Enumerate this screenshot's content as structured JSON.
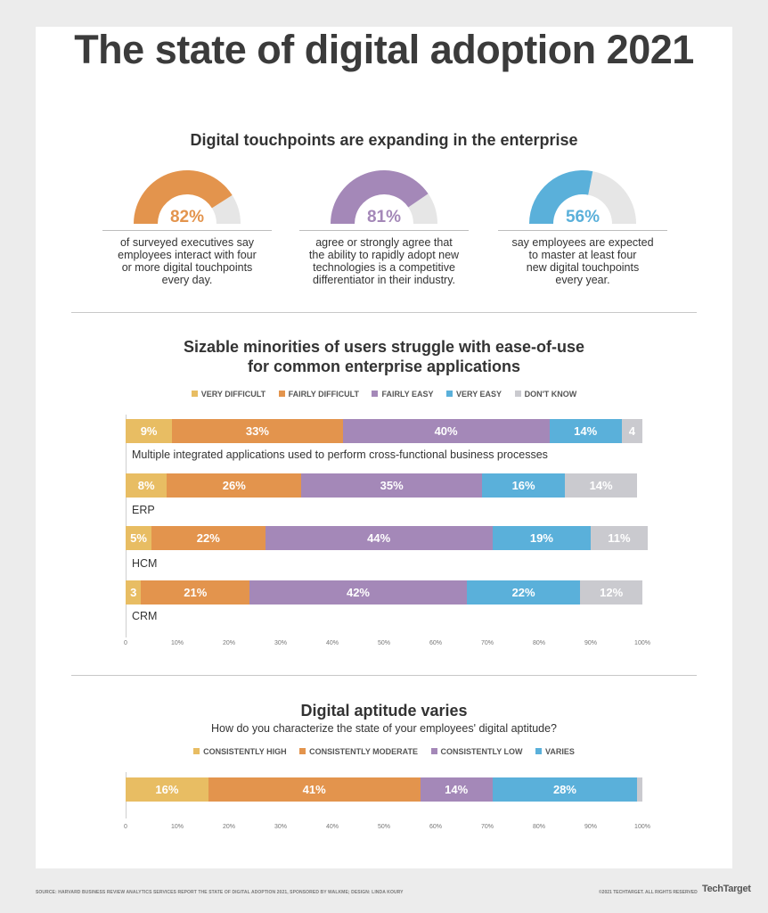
{
  "title": "The state of digital adoption 2021",
  "section1": {
    "heading": "Digital touchpoints are expanding in the enterprise",
    "gauges": [
      {
        "value": 82,
        "label": "82%",
        "color": "#e3944d",
        "text": [
          "of surveyed executives say",
          "employees interact with four",
          "or more digital touchpoints",
          "every day."
        ]
      },
      {
        "value": 81,
        "label": "81%",
        "color": "#a488b8",
        "text": [
          "agree or strongly agree that",
          "the ability to rapidly adopt new",
          "technologies is a competitive",
          "differentiator in their industry."
        ]
      },
      {
        "value": 56,
        "label": "56%",
        "color": "#5ab0da",
        "text": [
          "say employees are expected",
          "to master at least four",
          "new digital touchpoints",
          "every year."
        ]
      }
    ]
  },
  "section2": {
    "heading_line1": "Sizable minorities of users struggle with ease-of-use",
    "heading_line2": "for common enterprise applications",
    "legend": [
      {
        "label": "VERY DIFFICULT",
        "color": "#e8bd63"
      },
      {
        "label": "FAIRLY DIFFICULT",
        "color": "#e3944d"
      },
      {
        "label": "FAIRLY EASY",
        "color": "#a488b8"
      },
      {
        "label": "VERY EASY",
        "color": "#5ab0da"
      },
      {
        "label": "DON'T KNOW",
        "color": "#cacacf"
      }
    ],
    "axis_ticks": [
      "0",
      "10%",
      "20%",
      "30%",
      "40%",
      "50%",
      "60%",
      "70%",
      "80%",
      "90%",
      "100%"
    ]
  },
  "section3": {
    "heading": "Digital aptitude varies",
    "question": "How do you characterize the state of your employees' digital aptitude?",
    "legend": [
      {
        "label": "CONSISTENTLY HIGH",
        "color": "#e8bd63"
      },
      {
        "label": "CONSISTENTLY MODERATE",
        "color": "#e3944d"
      },
      {
        "label": "CONSISTENTLY LOW",
        "color": "#a488b8"
      },
      {
        "label": "VARIES",
        "color": "#5ab0da"
      }
    ],
    "axis_ticks": [
      "0",
      "10%",
      "20%",
      "30%",
      "40%",
      "50%",
      "60%",
      "70%",
      "80%",
      "90%",
      "100%"
    ]
  },
  "chart_data": [
    {
      "type": "bar",
      "orientation": "horizontal-stacked",
      "xlim": [
        0,
        100
      ],
      "categories": [
        "Multiple integrated applications used to perform cross-functional business processes",
        "ERP",
        "HCM",
        "CRM"
      ],
      "series": [
        {
          "name": "VERY DIFFICULT",
          "values": [
            9,
            8,
            5,
            3
          ],
          "labels": [
            "9%",
            "8%",
            "5%",
            "3"
          ]
        },
        {
          "name": "FAIRLY DIFFICULT",
          "values": [
            33,
            26,
            22,
            21
          ],
          "labels": [
            "33%",
            "26%",
            "22%",
            "21%"
          ]
        },
        {
          "name": "FAIRLY EASY",
          "values": [
            40,
            35,
            44,
            42
          ],
          "labels": [
            "40%",
            "35%",
            "44%",
            "42%"
          ]
        },
        {
          "name": "VERY EASY",
          "values": [
            14,
            16,
            19,
            22
          ],
          "labels": [
            "14%",
            "16%",
            "19%",
            "22%"
          ]
        },
        {
          "name": "DON'T KNOW",
          "values": [
            4,
            14,
            11,
            12
          ],
          "labels": [
            "4",
            "14%",
            "11%",
            "12%"
          ]
        }
      ]
    },
    {
      "type": "bar",
      "orientation": "horizontal-stacked",
      "xlim": [
        0,
        100
      ],
      "categories": [
        ""
      ],
      "series": [
        {
          "name": "CONSISTENTLY HIGH",
          "values": [
            16
          ],
          "labels": [
            "16%"
          ]
        },
        {
          "name": "CONSISTENTLY MODERATE",
          "values": [
            41
          ],
          "labels": [
            "41%"
          ]
        },
        {
          "name": "CONSISTENTLY LOW",
          "values": [
            14
          ],
          "labels": [
            "14%"
          ]
        },
        {
          "name": "VARIES",
          "values": [
            28
          ],
          "labels": [
            "28%"
          ]
        },
        {
          "name": "",
          "values": [
            1
          ],
          "labels": [
            ""
          ]
        }
      ]
    }
  ],
  "footer": {
    "source": "SOURCE: HARVARD BUSINESS REVIEW ANALYTICS SERVICES REPORT THE STATE OF DIGITAL ADOPTION 2021, SPONSORED BY WALKME; DESIGN: LINDA KOURY",
    "copyright": "©2021 TECHTARGET. ALL RIGHTS RESERVED",
    "logo": "TechTarget"
  }
}
